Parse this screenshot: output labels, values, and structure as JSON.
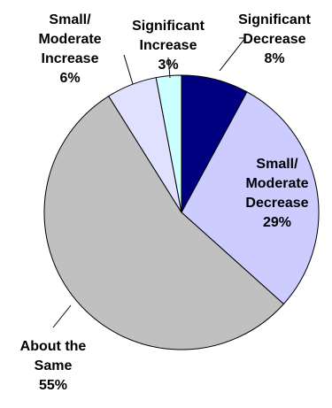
{
  "chart_data": {
    "type": "pie",
    "start_angle_deg": 0,
    "direction": "clockwise",
    "legend": "none",
    "slices": [
      {
        "label": [
          "Significant",
          "Decrease"
        ],
        "value": 8,
        "value_text": "8%",
        "color": "#000080"
      },
      {
        "label": [
          "Small/",
          "Moderate",
          "Decrease"
        ],
        "value": 29,
        "value_text": "29%",
        "color": "#CCCCFF"
      },
      {
        "label": [
          "About the",
          "Same"
        ],
        "value": 55,
        "value_text": "55%",
        "color": "#C0C0C0"
      },
      {
        "label": [
          "Small/",
          "Moderate",
          "Increase"
        ],
        "value": 6,
        "value_text": "6%",
        "color": "#E0E0FF"
      },
      {
        "label": [
          "Significant",
          "Increase"
        ],
        "value": 3,
        "value_text": "3%",
        "color": "#CCFFFF"
      }
    ]
  }
}
